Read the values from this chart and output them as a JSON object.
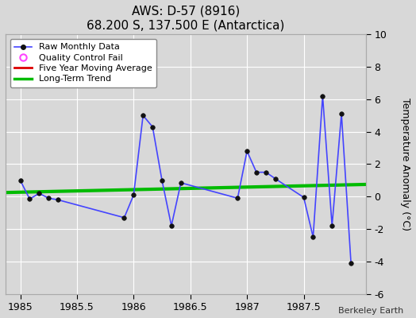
{
  "title": "AWS: D-57 (8916)",
  "subtitle": "68.200 S, 137.500 E (Antarctica)",
  "ylabel": "Temperature Anomaly (°C)",
  "credit": "Berkeley Earth",
  "xlim": [
    1984.87,
    1988.05
  ],
  "ylim": [
    -6,
    10
  ],
  "yticks": [
    -6,
    -4,
    -2,
    0,
    2,
    4,
    6,
    8,
    10
  ],
  "xticks": [
    1985,
    1985.5,
    1986,
    1986.5,
    1987,
    1987.5
  ],
  "background_color": "#d8d8d8",
  "plot_bg_color": "#d8d8d8",
  "raw_x": [
    1985.0,
    1985.083,
    1985.167,
    1985.25,
    1985.333,
    1985.917,
    1986.0,
    1986.083,
    1986.167,
    1986.25,
    1986.333,
    1986.417,
    1986.917,
    1987.0,
    1987.083,
    1987.167,
    1987.25,
    1987.5,
    1987.583,
    1987.667,
    1987.75,
    1987.833,
    1987.917
  ],
  "raw_y": [
    1.0,
    -0.15,
    0.2,
    -0.1,
    -0.2,
    -1.3,
    0.1,
    5.0,
    4.3,
    1.0,
    -1.8,
    0.85,
    -0.1,
    2.8,
    1.5,
    1.5,
    1.1,
    -0.05,
    -2.5,
    6.2,
    -1.8,
    5.1,
    -4.1
  ],
  "trend_x": [
    1984.87,
    1988.05
  ],
  "trend_y": [
    0.25,
    0.75
  ],
  "raw_color": "#4444ff",
  "trend_color": "#00bb00",
  "trend_linewidth": 3.0,
  "moving_avg_color": "#dd0000",
  "qc_color": "#ff44ff",
  "line_linewidth": 1.2,
  "marker_size": 4.0
}
